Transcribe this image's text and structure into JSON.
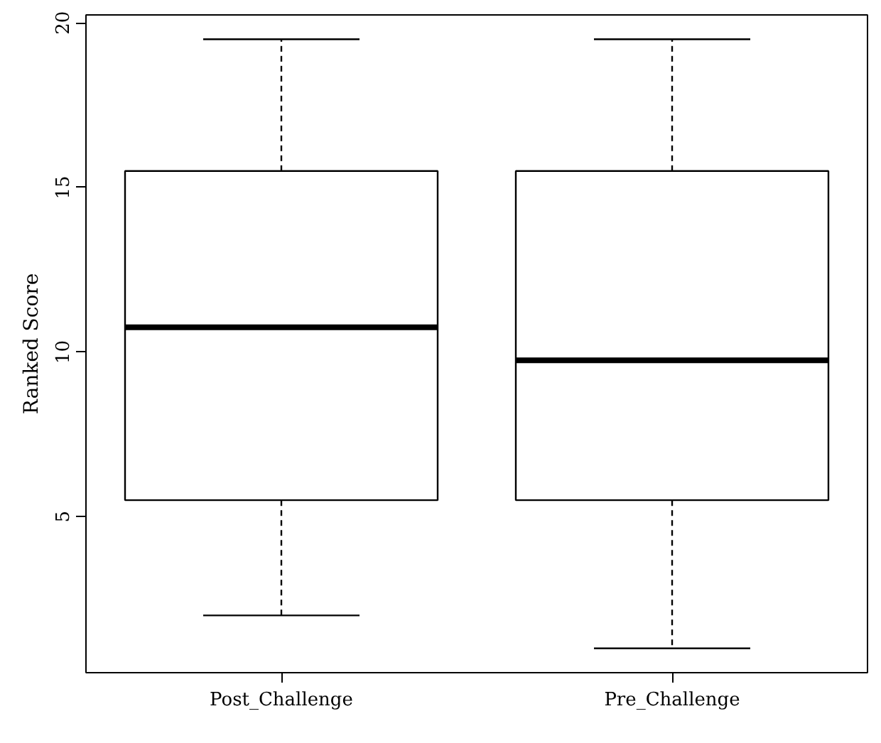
{
  "chart_data": {
    "type": "box",
    "ylabel": "Ranked Score",
    "categories": [
      "Post_Challenge",
      "Pre_Challenge"
    ],
    "boxes": [
      {
        "low": 2,
        "q1": 5.5,
        "median": 10.75,
        "q3": 15.5,
        "high": 19.5
      },
      {
        "low": 1,
        "q1": 5.5,
        "median": 9.75,
        "q3": 15.5,
        "high": 19.5
      }
    ],
    "ylim": [
      0.26,
      20.24
    ],
    "yticks": [
      5,
      10,
      15,
      20
    ],
    "grid": false
  }
}
